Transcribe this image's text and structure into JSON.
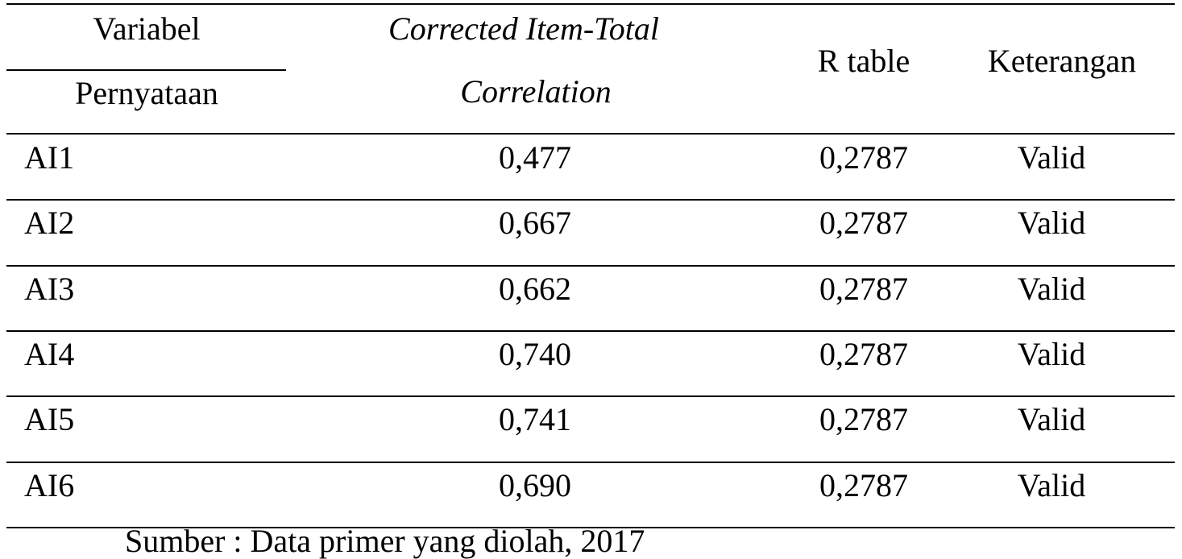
{
  "table": {
    "header": {
      "variabel": "Variabel",
      "pernyataan": "Pernyataan",
      "corrected_line1": "Corrected Item-Total",
      "corrected_line2": "Correlation",
      "r_table": "R table",
      "keterangan": "Keterangan"
    },
    "rows": [
      [
        "AI1",
        "0,477",
        "0,2787",
        "Valid"
      ],
      [
        "AI2",
        "0,667",
        "0,2787",
        "Valid"
      ],
      [
        "AI3",
        "0,662",
        "0,2787",
        "Valid"
      ],
      [
        "AI4",
        "0,740",
        "0,2787",
        "Valid"
      ],
      [
        "AI5",
        "0,741",
        "0,2787",
        "Valid"
      ],
      [
        "AI6",
        "0,690",
        "0,2787",
        "Valid"
      ]
    ]
  },
  "source": "Sumber : Data primer yang diolah, 2017"
}
